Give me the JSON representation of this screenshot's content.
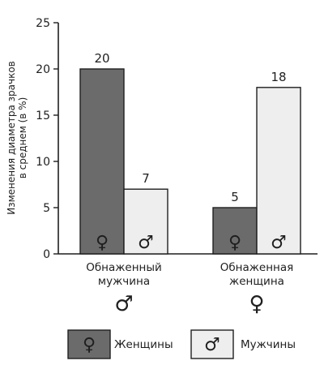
{
  "chart_data": {
    "type": "bar",
    "ylabel_lines": [
      "Изменения диаметра зрачков",
      "в среднем (в %)"
    ],
    "ylim": [
      0,
      25
    ],
    "y_ticks": [
      0,
      5,
      10,
      15,
      20,
      25
    ],
    "grid": false,
    "categories": [
      {
        "label_lines": [
          "Обнаженный",
          "мужчина"
        ],
        "symbol": "♂"
      },
      {
        "label_lines": [
          "Обнаженная",
          "женщина"
        ],
        "symbol": "♀"
      }
    ],
    "series": [
      {
        "name": "Женщины",
        "symbol": "♀",
        "color": "#6b6b6b",
        "values": [
          20,
          5
        ]
      },
      {
        "name": "Мужчины",
        "symbol": "♂",
        "color": "#eeeeee",
        "values": [
          7,
          18
        ]
      }
    ],
    "legend_position": "bottom"
  }
}
